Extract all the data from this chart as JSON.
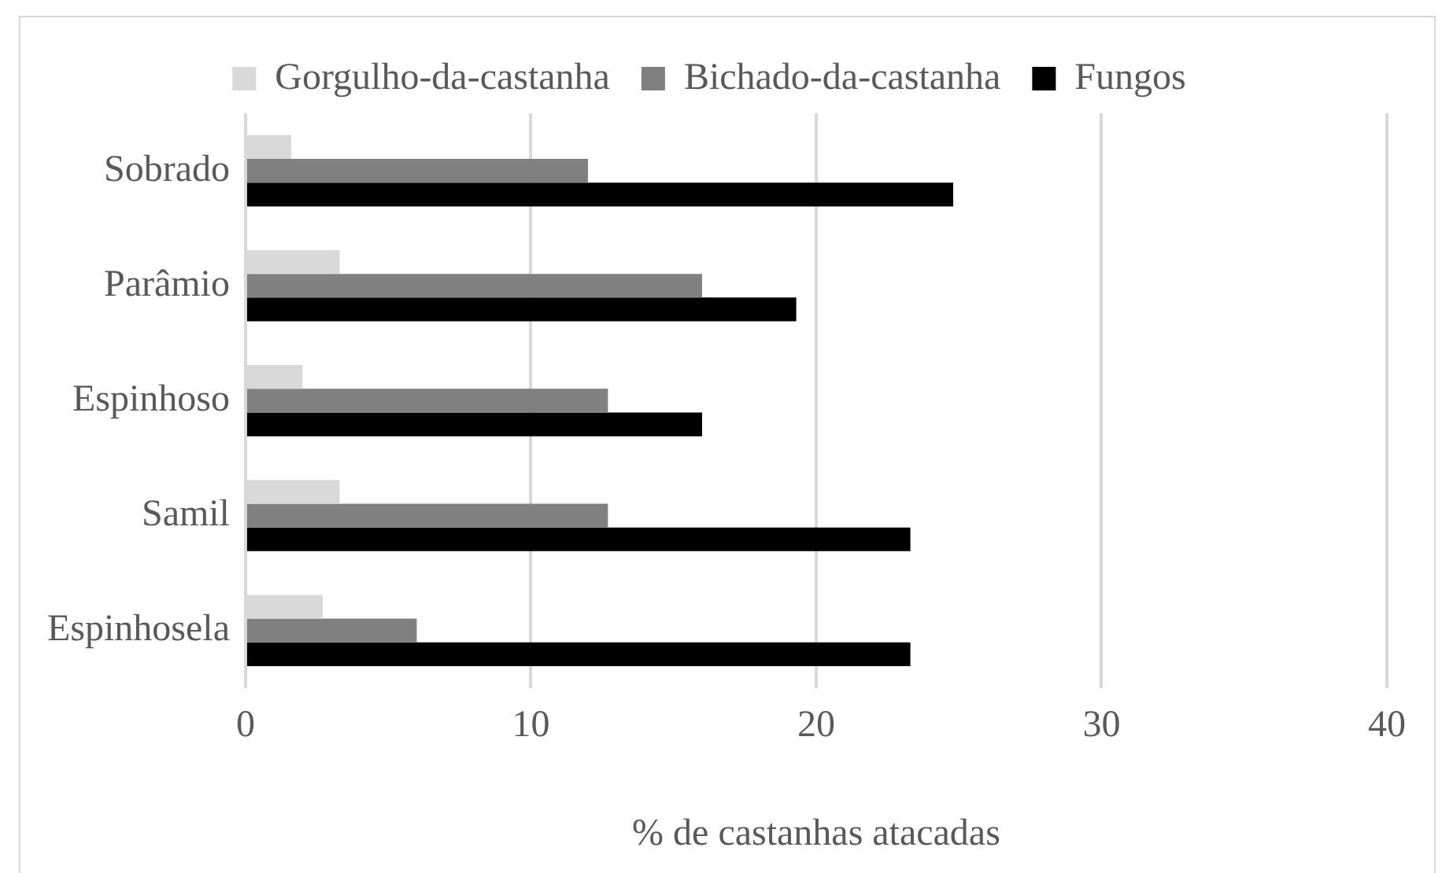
{
  "chart_data": {
    "type": "bar",
    "orientation": "horizontal",
    "categories": [
      "Sobrado",
      "Parâmio",
      "Espinhoso",
      "Samil",
      "Espinhosela"
    ],
    "series": [
      {
        "name": "Gorgulho-da-castanha",
        "color": "#d9d9d9",
        "values": [
          1.6,
          3.3,
          2.0,
          3.3,
          2.7
        ]
      },
      {
        "name": "Bichado-da-castanha",
        "color": "#808080",
        "values": [
          12.0,
          16.0,
          12.7,
          12.7,
          6.0
        ]
      },
      {
        "name": "Fungos",
        "color": "#000000",
        "values": [
          24.8,
          19.3,
          16.0,
          23.3,
          23.3
        ]
      }
    ],
    "xlabel": "% de castanhas atacadas",
    "xlim": [
      0,
      40
    ],
    "xticks": [
      0,
      10,
      20,
      30,
      40
    ],
    "grid": "x",
    "legend": "top"
  }
}
